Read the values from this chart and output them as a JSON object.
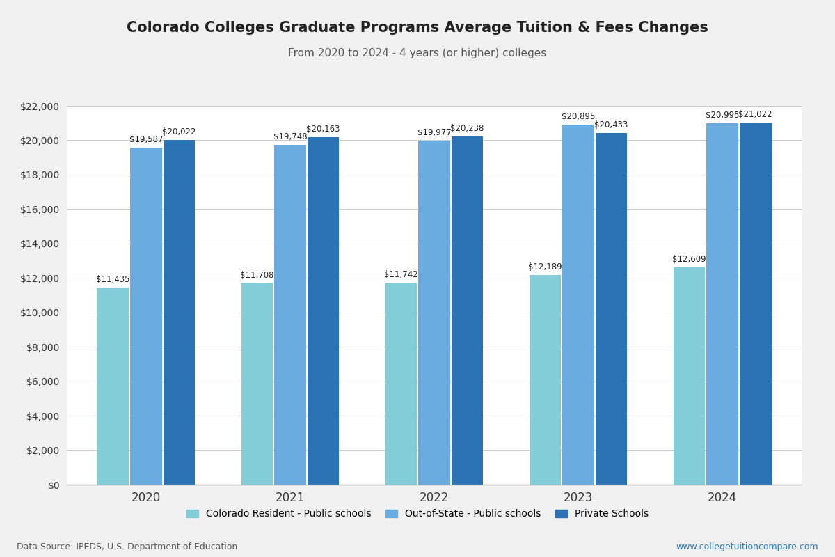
{
  "title": "Colorado Colleges Graduate Programs Average Tuition & Fees Changes",
  "subtitle": "From 2020 to 2024 - 4 years (or higher) colleges",
  "years": [
    2020,
    2021,
    2022,
    2023,
    2024
  ],
  "resident": [
    11435,
    11708,
    11742,
    12189,
    12609
  ],
  "out_of_state": [
    19587,
    19748,
    19977,
    20895,
    20995
  ],
  "private": [
    20022,
    20163,
    20238,
    20433,
    21022
  ],
  "bar_colors": {
    "resident": "#82CDD8",
    "out_of_state": "#6AABE0",
    "private": "#2B72B5"
  },
  "legend_labels": [
    "Colorado Resident - Public schools",
    "Out-of-State - Public schools",
    "Private Schools"
  ],
  "ylim": [
    0,
    22000
  ],
  "yticks": [
    0,
    2000,
    4000,
    6000,
    8000,
    10000,
    12000,
    14000,
    16000,
    18000,
    20000,
    22000
  ],
  "data_source": "Data Source: IPEDS, U.S. Department of Education",
  "website": "www.collegetuitioncompare.com",
  "bg_color": "#f0f0f0",
  "plot_bg_color": "#ffffff"
}
